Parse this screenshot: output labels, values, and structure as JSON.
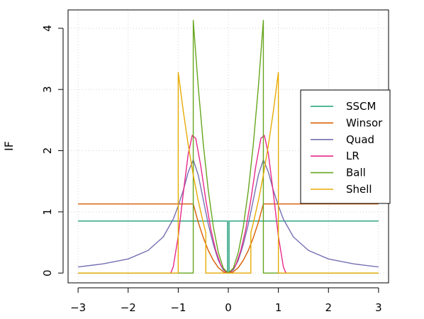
{
  "chart_data": {
    "type": "line",
    "title": "",
    "xlabel": "",
    "ylabel": "IF",
    "xlim": [
      -3.2,
      3.2
    ],
    "ylim": [
      -0.16,
      4.3
    ],
    "xticks": [
      -3,
      -2,
      -1,
      0,
      1,
      2,
      3
    ],
    "yticks": [
      0,
      1,
      2,
      3,
      4
    ],
    "grid": true,
    "legend_position": "right",
    "series": [
      {
        "name": "SSCM",
        "color": "#1b9e77",
        "points": [
          [
            -3,
            0.85
          ],
          [
            -0.015,
            0.85
          ],
          [
            -0.015,
            0
          ],
          [
            0,
            0
          ],
          [
            0.015,
            0
          ],
          [
            0.015,
            0.85
          ],
          [
            3,
            0.85
          ]
        ]
      },
      {
        "name": "Winsor",
        "color": "#d95f02",
        "points": [
          [
            -3,
            1.13
          ],
          [
            -0.7,
            1.13
          ],
          [
            -0.6,
            0.83
          ],
          [
            -0.5,
            0.58
          ],
          [
            -0.4,
            0.37
          ],
          [
            -0.3,
            0.21
          ],
          [
            -0.2,
            0.09
          ],
          [
            -0.1,
            0.02
          ],
          [
            0,
            0
          ],
          [
            0.1,
            0.02
          ],
          [
            0.2,
            0.09
          ],
          [
            0.3,
            0.21
          ],
          [
            0.4,
            0.37
          ],
          [
            0.5,
            0.58
          ],
          [
            0.6,
            0.83
          ],
          [
            0.7,
            1.13
          ],
          [
            3,
            1.13
          ]
        ]
      },
      {
        "name": "Quad",
        "color": "#7570b3",
        "points": [
          [
            -3,
            0.1
          ],
          [
            -2.5,
            0.15
          ],
          [
            -2,
            0.23
          ],
          [
            -1.6,
            0.37
          ],
          [
            -1.3,
            0.59
          ],
          [
            -1.1,
            0.88
          ],
          [
            -1,
            1.1
          ],
          [
            -0.9,
            1.35
          ],
          [
            -0.8,
            1.65
          ],
          [
            -0.7,
            1.85
          ],
          [
            -0.6,
            1.6
          ],
          [
            -0.5,
            1.2
          ],
          [
            -0.4,
            0.8
          ],
          [
            -0.3,
            0.47
          ],
          [
            -0.2,
            0.21
          ],
          [
            -0.1,
            0.05
          ],
          [
            0,
            0
          ],
          [
            0.1,
            0.05
          ],
          [
            0.2,
            0.21
          ],
          [
            0.3,
            0.47
          ],
          [
            0.4,
            0.8
          ],
          [
            0.5,
            1.2
          ],
          [
            0.6,
            1.6
          ],
          [
            0.7,
            1.85
          ],
          [
            0.8,
            1.65
          ],
          [
            0.9,
            1.35
          ],
          [
            1,
            1.1
          ],
          [
            1.1,
            0.88
          ],
          [
            1.3,
            0.59
          ],
          [
            1.6,
            0.37
          ],
          [
            2,
            0.23
          ],
          [
            2.5,
            0.15
          ],
          [
            3,
            0.1
          ]
        ]
      },
      {
        "name": "LR",
        "color": "#e7298a",
        "points": [
          [
            -3,
            0
          ],
          [
            -1.15,
            0
          ],
          [
            -1.1,
            0.1
          ],
          [
            -1.0,
            0.6
          ],
          [
            -0.9,
            1.3
          ],
          [
            -0.8,
            1.95
          ],
          [
            -0.72,
            2.25
          ],
          [
            -0.65,
            2.2
          ],
          [
            -0.55,
            1.75
          ],
          [
            -0.45,
            1.2
          ],
          [
            -0.35,
            0.72
          ],
          [
            -0.25,
            0.37
          ],
          [
            -0.15,
            0.13
          ],
          [
            -0.05,
            0.02
          ],
          [
            0,
            0
          ],
          [
            0.05,
            0.02
          ],
          [
            0.15,
            0.13
          ],
          [
            0.25,
            0.37
          ],
          [
            0.35,
            0.72
          ],
          [
            0.45,
            1.2
          ],
          [
            0.55,
            1.75
          ],
          [
            0.65,
            2.2
          ],
          [
            0.72,
            2.25
          ],
          [
            0.8,
            1.95
          ],
          [
            0.9,
            1.3
          ],
          [
            1.0,
            0.6
          ],
          [
            1.1,
            0.1
          ],
          [
            1.15,
            0
          ],
          [
            3,
            0
          ]
        ]
      },
      {
        "name": "Ball",
        "color": "#66a61e",
        "points": [
          [
            -3,
            0
          ],
          [
            -0.7,
            0
          ],
          [
            -0.7,
            4.13
          ],
          [
            -0.6,
            3.04
          ],
          [
            -0.5,
            2.11
          ],
          [
            -0.4,
            1.35
          ],
          [
            -0.3,
            0.76
          ],
          [
            -0.2,
            0.34
          ],
          [
            -0.1,
            0.08
          ],
          [
            0,
            0
          ],
          [
            0.1,
            0.08
          ],
          [
            0.2,
            0.34
          ],
          [
            0.3,
            0.76
          ],
          [
            0.4,
            1.35
          ],
          [
            0.5,
            2.11
          ],
          [
            0.6,
            3.04
          ],
          [
            0.7,
            4.13
          ],
          [
            0.7,
            0
          ],
          [
            3,
            0
          ]
        ]
      },
      {
        "name": "Shell",
        "color": "#e6ab02",
        "points": [
          [
            -3,
            0
          ],
          [
            -1,
            0
          ],
          [
            -1,
            3.28
          ],
          [
            -0.9,
            2.65
          ],
          [
            -0.8,
            2.09
          ],
          [
            -0.7,
            1.6
          ],
          [
            -0.6,
            1.18
          ],
          [
            -0.5,
            0.82
          ],
          [
            -0.45,
            0.66
          ],
          [
            -0.45,
            0
          ],
          [
            0.45,
            0
          ],
          [
            0.45,
            0.66
          ],
          [
            0.5,
            0.82
          ],
          [
            0.6,
            1.18
          ],
          [
            0.7,
            1.6
          ],
          [
            0.8,
            2.09
          ],
          [
            0.9,
            2.65
          ],
          [
            1,
            3.28
          ],
          [
            1,
            0
          ],
          [
            3,
            0
          ]
        ]
      }
    ]
  }
}
